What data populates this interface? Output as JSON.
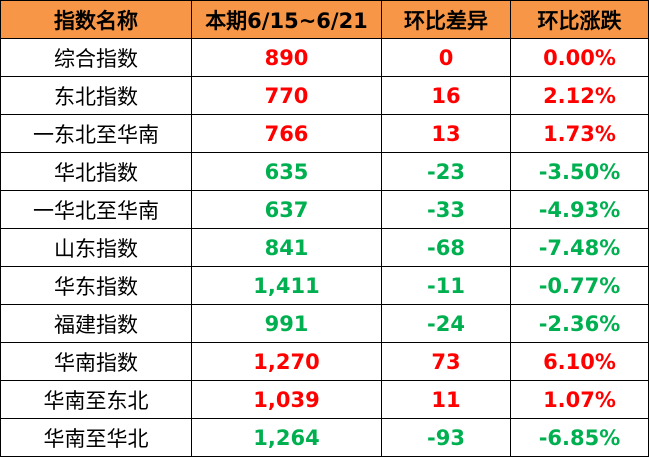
{
  "colors": {
    "header_bg": "#F79646",
    "up": "#FF0000",
    "down": "#00B050"
  },
  "headers": [
    "指数名称",
    "本期6/15~6/21",
    "环比差异",
    "环比涨跌"
  ],
  "rows": [
    {
      "name": "综合指数",
      "value": "890",
      "diff": "0",
      "pct": "0.00%",
      "trend": "up"
    },
    {
      "name": "东北指数",
      "value": "770",
      "diff": "16",
      "pct": "2.12%",
      "trend": "up"
    },
    {
      "name": "一东北至华南",
      "value": "766",
      "diff": "13",
      "pct": "1.73%",
      "trend": "up"
    },
    {
      "name": "华北指数",
      "value": "635",
      "diff": "-23",
      "pct": "-3.50%",
      "trend": "down"
    },
    {
      "name": "一华北至华南",
      "value": "637",
      "diff": "-33",
      "pct": "-4.93%",
      "trend": "down"
    },
    {
      "name": "山东指数",
      "value": "841",
      "diff": "-68",
      "pct": "-7.48%",
      "trend": "down"
    },
    {
      "name": "华东指数",
      "value": "1,411",
      "diff": "-11",
      "pct": "-0.77%",
      "trend": "down"
    },
    {
      "name": "福建指数",
      "value": "991",
      "diff": "-24",
      "pct": "-2.36%",
      "trend": "down"
    },
    {
      "name": "华南指数",
      "value": "1,270",
      "diff": "73",
      "pct": "6.10%",
      "trend": "up"
    },
    {
      "name": "华南至东北",
      "value": "1,039",
      "diff": "11",
      "pct": "1.07%",
      "trend": "up"
    },
    {
      "name": "华南至华北",
      "value": "1,264",
      "diff": "-93",
      "pct": "-6.85%",
      "trend": "down"
    }
  ]
}
